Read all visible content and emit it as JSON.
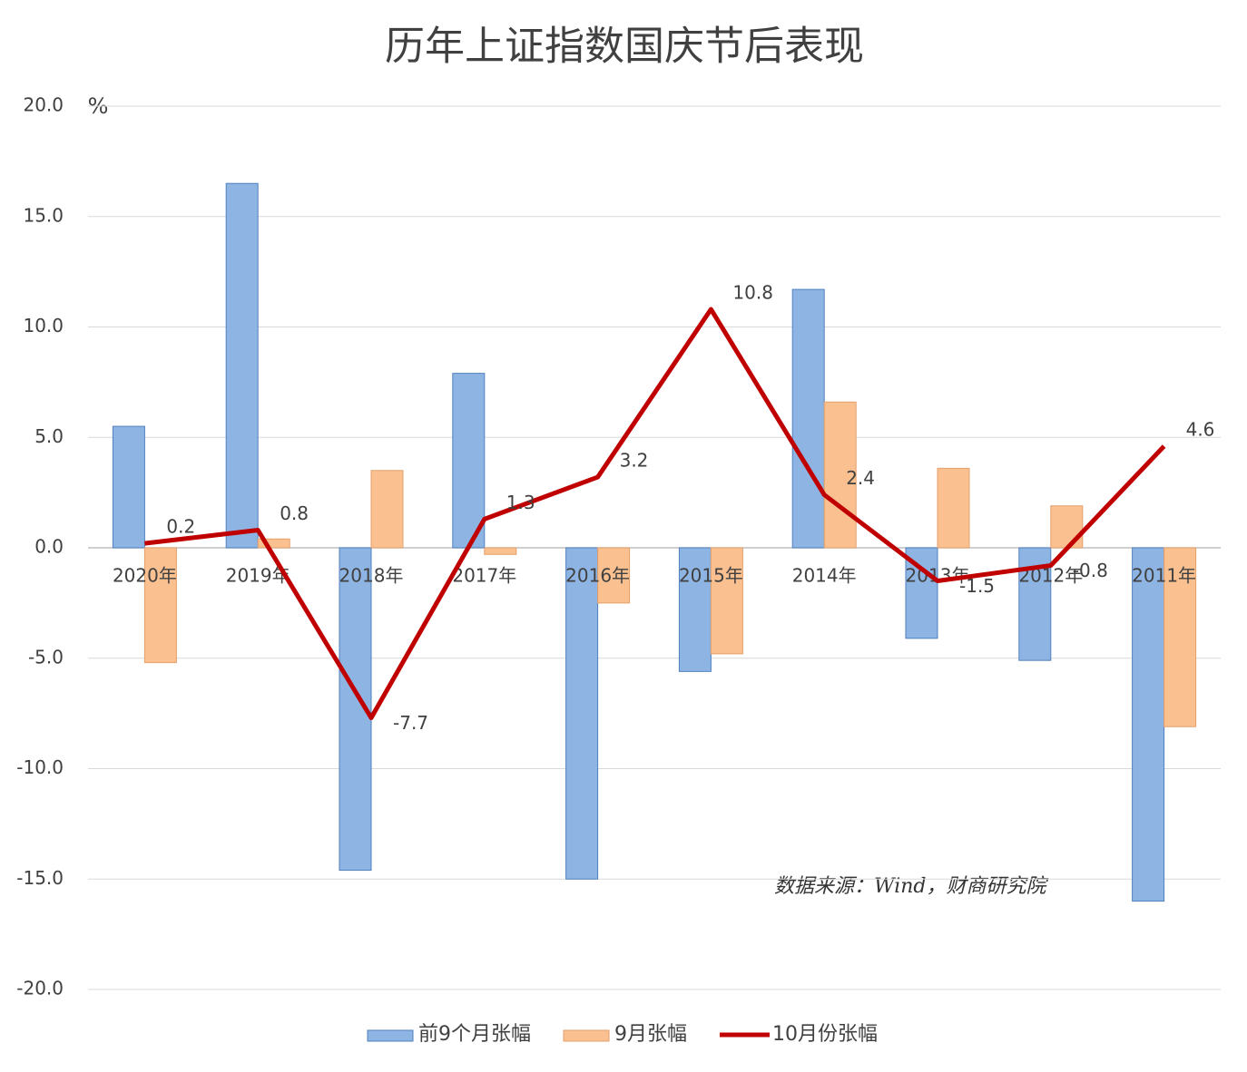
{
  "chart_data": {
    "type": "bar_line",
    "title": "历年上证指数国庆节后表现",
    "y_unit": "%",
    "annotation": "数据来源：Wind，财商研究院",
    "categories": [
      "2020年",
      "2019年",
      "2018年",
      "2017年",
      "2016年",
      "2015年",
      "2014年",
      "2013年",
      "2012年",
      "2011年"
    ],
    "series": [
      {
        "name": "前9个月张幅",
        "type": "bar",
        "color": "#8eb4e3",
        "values": [
          5.5,
          16.5,
          -14.6,
          7.9,
          -15.0,
          -5.6,
          11.7,
          -4.1,
          -5.1,
          -16.0
        ]
      },
      {
        "name": "9月张幅",
        "type": "bar",
        "color": "#fac090",
        "values": [
          -5.2,
          0.4,
          3.5,
          -0.3,
          -2.5,
          -4.8,
          6.6,
          3.6,
          1.9,
          -8.1
        ]
      },
      {
        "name": "10月份张幅",
        "type": "line",
        "color": "#c00000",
        "values": [
          0.2,
          0.8,
          -7.7,
          1.3,
          3.2,
          10.8,
          2.4,
          -1.5,
          -0.8,
          4.6
        ]
      }
    ],
    "ylim": [
      -20,
      20
    ],
    "yticks": [
      {
        "value": 20,
        "label": "20.0"
      },
      {
        "value": 15,
        "label": "15.0"
      },
      {
        "value": 10,
        "label": "10.0"
      },
      {
        "value": 5,
        "label": "5.0"
      },
      {
        "value": 0,
        "label": "0.0"
      },
      {
        "value": -5,
        "label": "-5.0"
      },
      {
        "value": -10,
        "label": "-10.0"
      },
      {
        "value": -15,
        "label": "-15.0"
      },
      {
        "value": -20,
        "label": "-20.0"
      }
    ],
    "grid": true
  }
}
